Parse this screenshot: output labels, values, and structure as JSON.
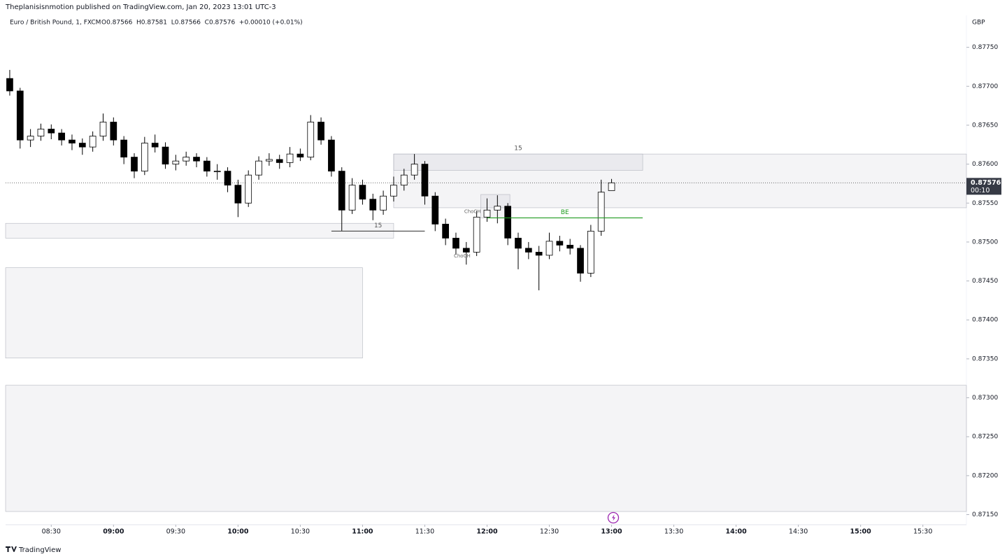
{
  "header": {
    "attribution": "Theplanisisnmotion published on TradingView.com, Jan 20, 2023 13:01 UTC-3",
    "brand": "TradingView"
  },
  "chart_data": {
    "type": "candlestick",
    "title": "Euro / British Pound, 1, FXCM",
    "quote": "O0.87566  H0.87581  L0.87566  C0.87576  +0.00010 (+0.01%)",
    "currency": "GBP",
    "up_color": "#ffffff",
    "down_color": "#000000",
    "wick_color": "#000000",
    "x": [
      "08:10",
      "08:15",
      "08:20",
      "08:25",
      "08:30",
      "08:35",
      "08:40",
      "08:45",
      "08:50",
      "08:55",
      "09:00",
      "09:05",
      "09:10",
      "09:15",
      "09:20",
      "09:25",
      "09:30",
      "09:35",
      "09:40",
      "09:45",
      "09:50",
      "09:55",
      "10:00",
      "10:05",
      "10:10",
      "10:15",
      "10:20",
      "10:25",
      "10:30",
      "10:35",
      "10:40",
      "10:45",
      "10:50",
      "10:55",
      "11:00",
      "11:05",
      "11:10",
      "11:15",
      "11:20",
      "11:25",
      "11:30",
      "11:35",
      "11:40",
      "11:45",
      "11:50",
      "11:55",
      "12:00",
      "12:05",
      "12:10",
      "12:15",
      "12:20",
      "12:25",
      "12:30",
      "12:35",
      "12:40",
      "12:45",
      "12:50",
      "12:55",
      "13:00"
    ],
    "open": [
      0.8771,
      0.87694,
      0.87631,
      0.87636,
      0.87645,
      0.8764,
      0.87631,
      0.87627,
      0.87622,
      0.87636,
      0.87654,
      0.87631,
      0.87609,
      0.87591,
      0.87627,
      0.87622,
      0.876,
      0.87604,
      0.87609,
      0.87604,
      0.87591,
      0.87591,
      0.87573,
      0.8755,
      0.87586,
      0.87604,
      0.87606,
      0.87602,
      0.87613,
      0.87609,
      0.87654,
      0.87631,
      0.87591,
      0.87541,
      0.87573,
      0.87555,
      0.87541,
      0.87559,
      0.87573,
      0.87586,
      0.876,
      0.87559,
      0.87523,
      0.87505,
      0.87492,
      0.87487,
      0.87532,
      0.87541,
      0.87546,
      0.87505,
      0.87492,
      0.87487,
      0.87483,
      0.87501,
      0.87496,
      0.87492,
      0.8746,
      0.87514,
      0.87566
    ],
    "high": [
      0.87721,
      0.87698,
      0.87645,
      0.87652,
      0.87651,
      0.87645,
      0.87638,
      0.87633,
      0.87642,
      0.87665,
      0.8766,
      0.87636,
      0.87614,
      0.87635,
      0.87638,
      0.87628,
      0.87612,
      0.87616,
      0.87614,
      0.87609,
      0.876,
      0.87596,
      0.8758,
      0.87592,
      0.8761,
      0.87614,
      0.87612,
      0.87622,
      0.8762,
      0.87663,
      0.8766,
      0.87636,
      0.87596,
      0.87582,
      0.8758,
      0.87562,
      0.87566,
      0.87584,
      0.87594,
      0.87613,
      0.87604,
      0.87564,
      0.8753,
      0.87512,
      0.875,
      0.8754,
      0.87556,
      0.8756,
      0.8755,
      0.87512,
      0.875,
      0.87495,
      0.87512,
      0.87508,
      0.87504,
      0.87496,
      0.87522,
      0.8758,
      0.87581
    ],
    "low": [
      0.87688,
      0.8762,
      0.87622,
      0.8763,
      0.87632,
      0.87624,
      0.87618,
      0.87612,
      0.87616,
      0.8763,
      0.87624,
      0.876,
      0.87582,
      0.87586,
      0.87615,
      0.87594,
      0.87592,
      0.87598,
      0.87596,
      0.87584,
      0.8758,
      0.87564,
      0.87532,
      0.87545,
      0.8758,
      0.87598,
      0.87594,
      0.87596,
      0.87604,
      0.87605,
      0.87625,
      0.87584,
      0.87514,
      0.87536,
      0.87548,
      0.87528,
      0.87535,
      0.87552,
      0.87566,
      0.8758,
      0.87548,
      0.87514,
      0.87496,
      0.87484,
      0.87471,
      0.87482,
      0.87526,
      0.87524,
      0.87496,
      0.87465,
      0.87478,
      0.87438,
      0.87478,
      0.87488,
      0.87484,
      0.87449,
      0.87455,
      0.87508,
      0.87566
    ],
    "close": [
      0.87694,
      0.87631,
      0.87636,
      0.87645,
      0.8764,
      0.87631,
      0.87627,
      0.87622,
      0.87636,
      0.87654,
      0.87631,
      0.87609,
      0.87591,
      0.87627,
      0.87622,
      0.876,
      0.87604,
      0.87609,
      0.87604,
      0.87591,
      0.87591,
      0.87573,
      0.8755,
      0.87586,
      0.87604,
      0.87606,
      0.87602,
      0.87613,
      0.87609,
      0.87654,
      0.87631,
      0.87591,
      0.87541,
      0.87573,
      0.87555,
      0.87541,
      0.87559,
      0.87573,
      0.87586,
      0.876,
      0.87559,
      0.87523,
      0.87505,
      0.87492,
      0.87487,
      0.87532,
      0.87541,
      0.87546,
      0.87505,
      0.87492,
      0.87487,
      0.87483,
      0.87501,
      0.87496,
      0.87492,
      0.8746,
      0.87514,
      0.87564,
      0.87576
    ],
    "xlim": [
      "08:08",
      "15:51"
    ],
    "xticks": [
      "08:30",
      "09:00",
      "09:30",
      "10:00",
      "10:30",
      "11:00",
      "11:30",
      "12:00",
      "12:30",
      "13:00",
      "13:30",
      "14:00",
      "14:30",
      "15:00",
      "15:30"
    ],
    "ylim": [
      0.87137,
      0.87791
    ],
    "yticks": [
      {
        "value": 0.8715,
        "label": "0.87150"
      },
      {
        "value": 0.872,
        "label": "0.87200"
      },
      {
        "value": 0.8725,
        "label": "0.87250"
      },
      {
        "value": 0.873,
        "label": "0.87300"
      },
      {
        "value": 0.8735,
        "label": "0.87350"
      },
      {
        "value": 0.874,
        "label": "0.87400"
      },
      {
        "value": 0.8745,
        "label": "0.87450"
      },
      {
        "value": 0.875,
        "label": "0.87500"
      },
      {
        "value": 0.8755,
        "label": "0.87550"
      },
      {
        "value": 0.876,
        "label": "0.87600"
      },
      {
        "value": 0.8765,
        "label": "0.87650"
      },
      {
        "value": 0.877,
        "label": "0.87700"
      },
      {
        "value": 0.8775,
        "label": "0.87750"
      }
    ],
    "zones": [
      {
        "time": [
          "11:15",
          "13:15"
        ],
        "price": [
          0.87613,
          0.87592
        ],
        "label": "15"
      },
      {
        "time": [
          "11:15",
          "15:51"
        ],
        "price": [
          0.87613,
          0.87544
        ]
      },
      {
        "time": [
          "08:08",
          "11:15"
        ],
        "price": [
          0.87524,
          0.87505
        ]
      },
      {
        "time": [
          "08:08",
          "11:00"
        ],
        "price": [
          0.87467,
          0.87351
        ]
      },
      {
        "time": [
          "08:08",
          "15:51"
        ],
        "price": [
          0.87316,
          0.87154
        ]
      },
      {
        "time": [
          "11:57",
          "12:11"
        ],
        "price": [
          0.87561,
          0.87531
        ]
      }
    ],
    "levels": [
      {
        "time": [
          "10:45",
          "11:30"
        ],
        "price": 0.87514,
        "label": "15",
        "color": "#555555"
      },
      {
        "time": [
          "12:00",
          "13:15"
        ],
        "price": 0.87531,
        "label": "BE",
        "color": "#1e9b1e"
      }
    ],
    "annotations": [
      {
        "text": "ChoCH",
        "time": "11:53",
        "price": 0.87539
      },
      {
        "text": "ChoCH",
        "time": "11:48",
        "price": 0.87482
      }
    ],
    "last_price": {
      "value": 0.87576,
      "countdown": "00:10"
    }
  }
}
